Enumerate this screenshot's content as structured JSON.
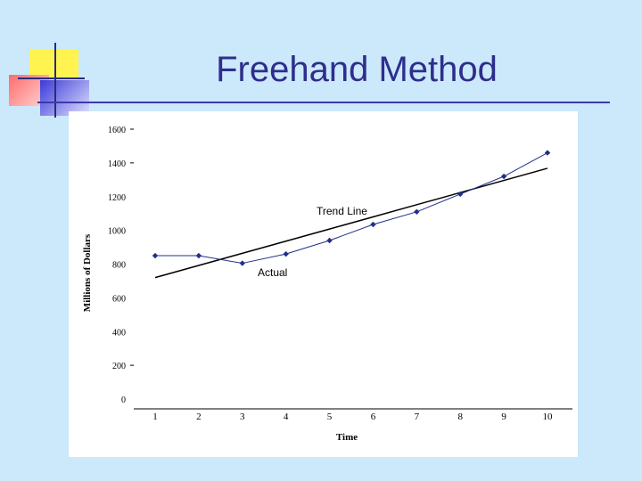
{
  "slide": {
    "title": "Freehand Method"
  },
  "colors": {
    "background": "#cce8fb",
    "title": "#2e2e8c",
    "actual_line": "#1f2f8a",
    "trend_line": "#000000"
  },
  "chart_data": {
    "type": "line",
    "xlabel": "Time",
    "ylabel": "Millions of Dollars",
    "x": [
      1,
      2,
      3,
      4,
      5,
      6,
      7,
      8,
      9,
      10
    ],
    "xlim": [
      1,
      10
    ],
    "ylim": [
      0,
      1600
    ],
    "yticks": [
      0,
      200,
      400,
      600,
      800,
      1000,
      1200,
      1400,
      1600
    ],
    "xticks": [
      1,
      2,
      3,
      4,
      5,
      6,
      7,
      8,
      9,
      10
    ],
    "grid": false,
    "series": [
      {
        "name": "Actual",
        "values": [
          850,
          850,
          805,
          860,
          940,
          1035,
          1110,
          1215,
          1320,
          1460
        ]
      },
      {
        "name": "Trend Line",
        "values": [
          720,
          792,
          864,
          936,
          1008,
          1080,
          1152,
          1224,
          1296,
          1368
        ]
      }
    ]
  }
}
